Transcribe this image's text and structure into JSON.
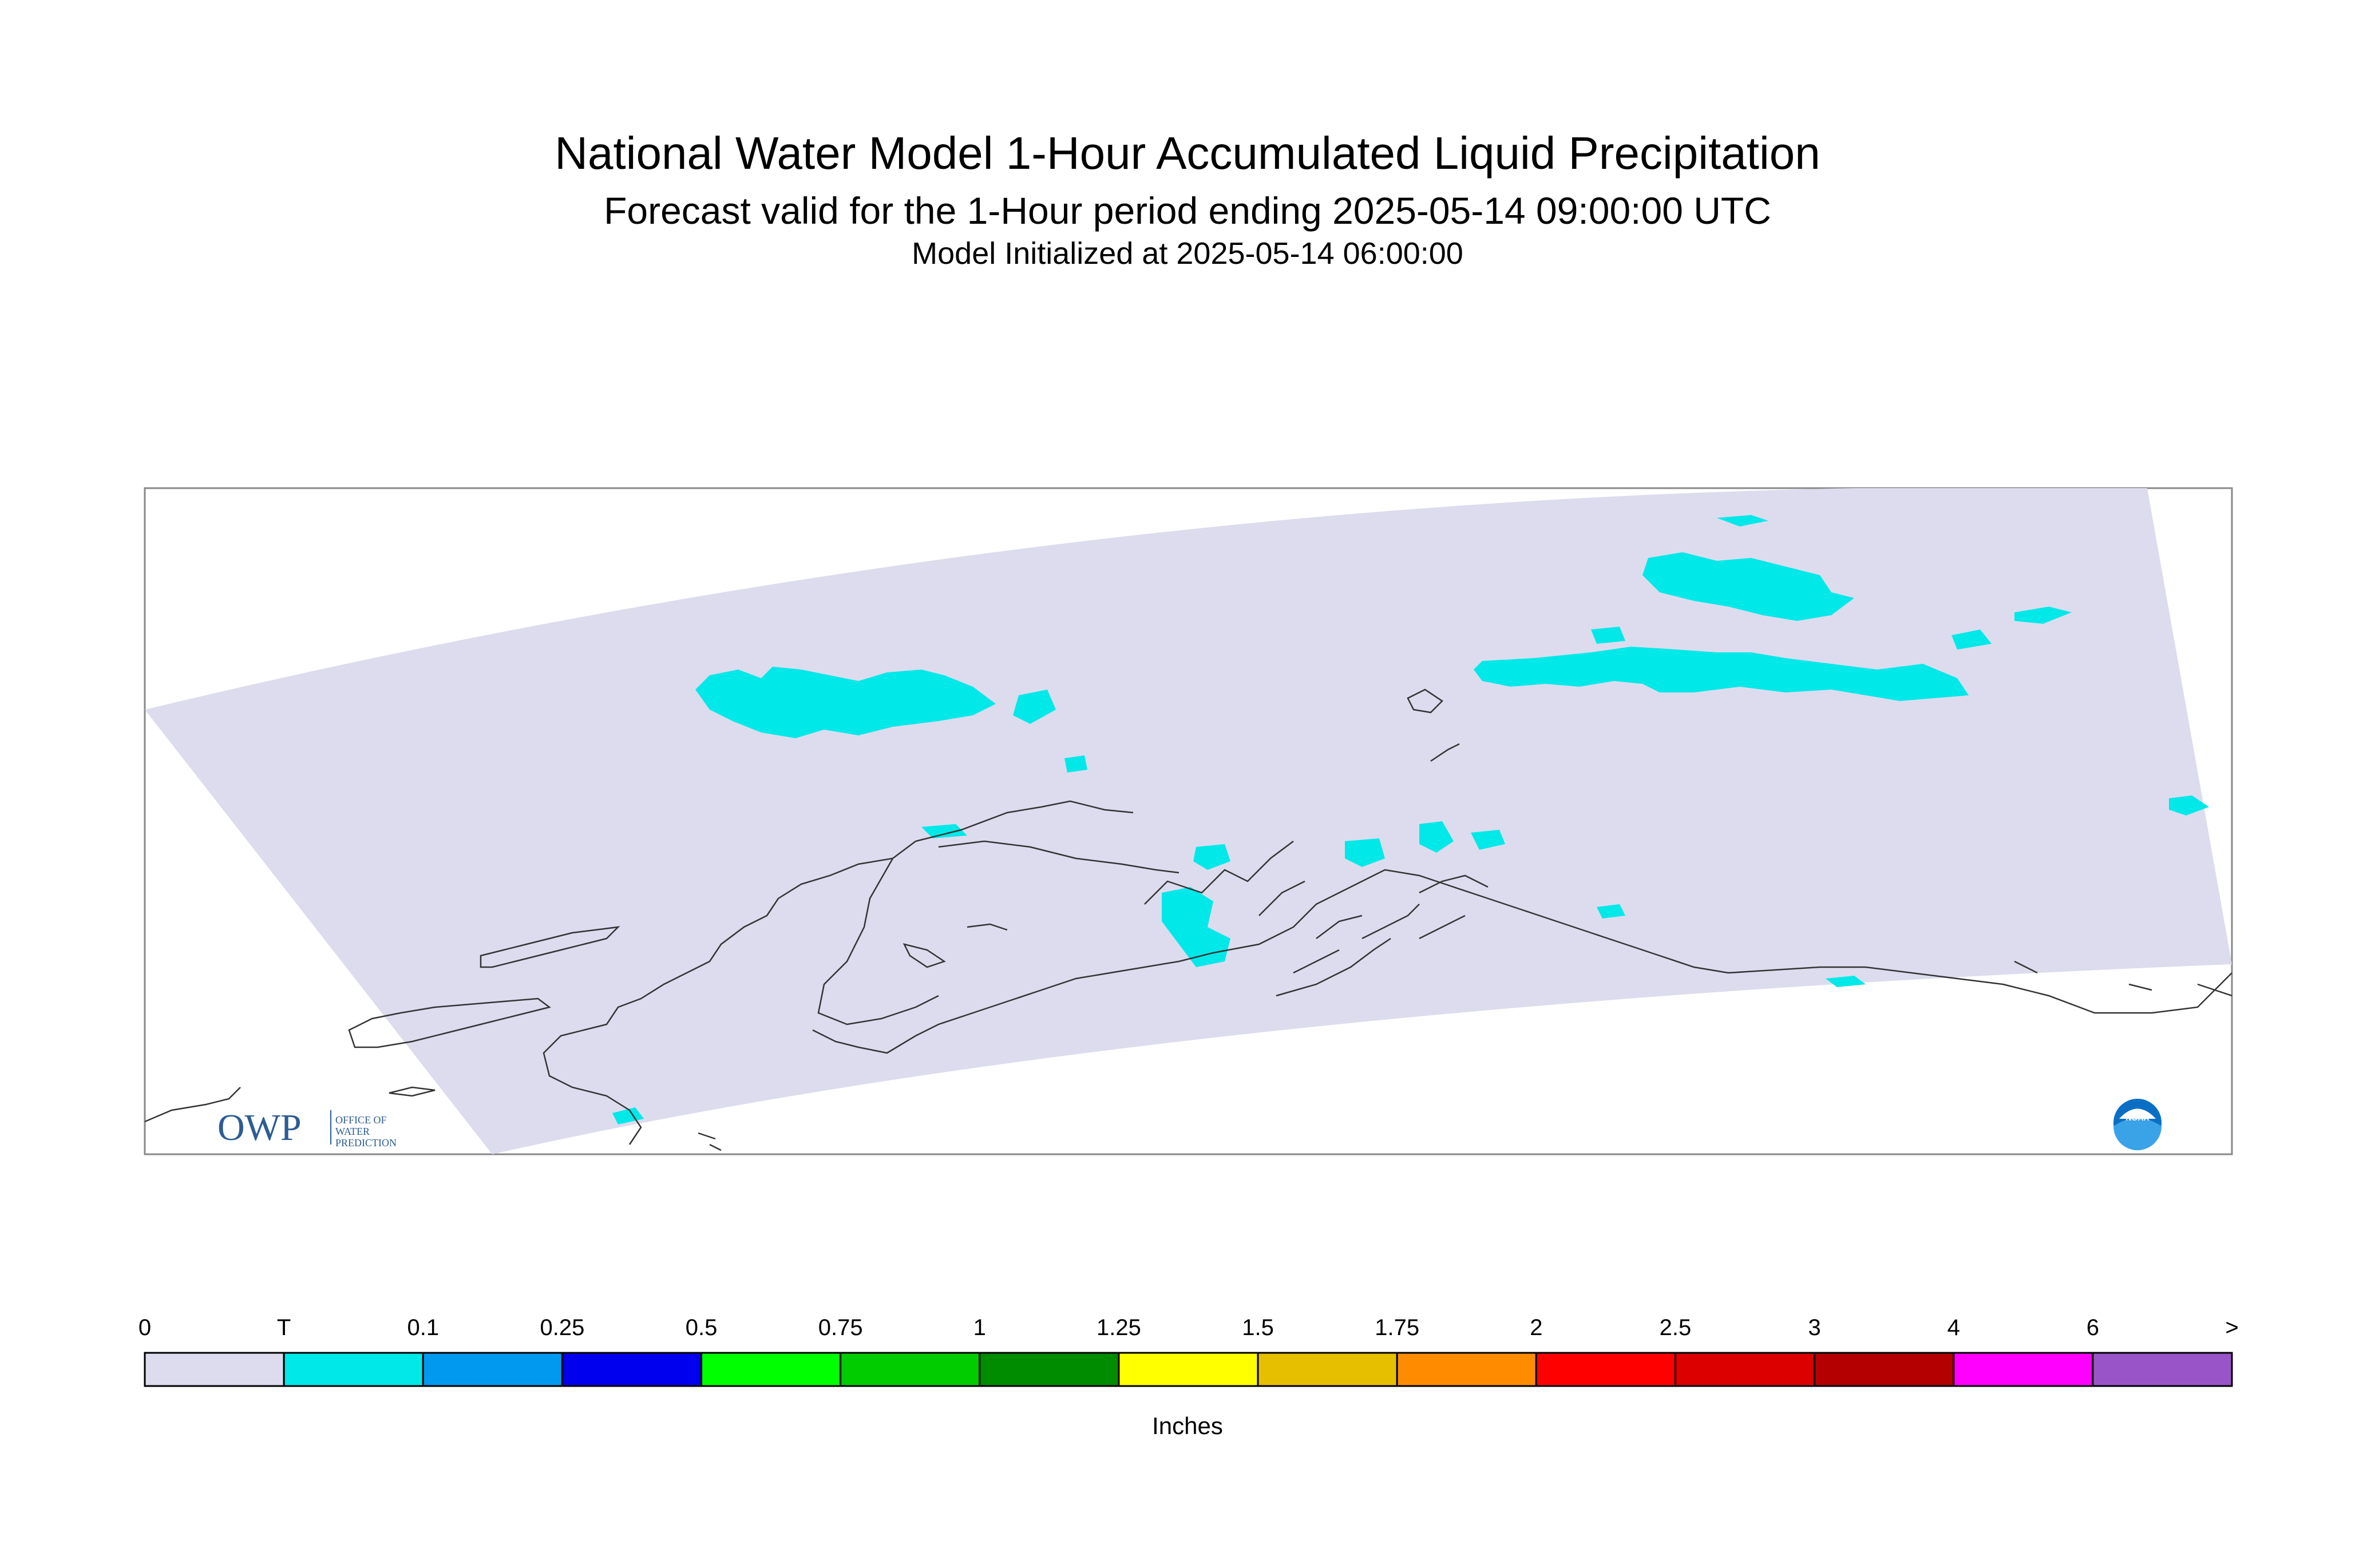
{
  "titles": {
    "main": "National Water Model 1-Hour Accumulated Liquid Precipitation",
    "forecast": "Forecast valid for the 1-Hour period ending 2025-05-14 09:00:00 UTC",
    "init": "Model Initialized at 2025-05-14 06:00:00"
  },
  "map": {
    "domain_fill": "#dcdcee",
    "coastline_color": "#333333",
    "region": "Alaska",
    "precip_color_trace": "#00e8e8"
  },
  "logos": {
    "owp_text": "OWP",
    "owp_sub": [
      "OFFICE OF",
      "WATER",
      "PREDICTION"
    ],
    "noaa_text": "NOAA"
  },
  "colorbar": {
    "units": "Inches",
    "tick_labels": [
      "0",
      "T",
      "0.1",
      "0.25",
      "0.5",
      "0.75",
      "1",
      "1.25",
      "1.5",
      "1.75",
      "2",
      "2.5",
      "3",
      "4",
      "6",
      ">"
    ],
    "colors": [
      "#dcdcee",
      "#00e8e8",
      "#0099f0",
      "#0000ee",
      "#00ff00",
      "#00cc00",
      "#008c00",
      "#ffff00",
      "#e6c000",
      "#ff8c00",
      "#ff0000",
      "#dc0000",
      "#b40000",
      "#ff00ff",
      "#9955c8"
    ]
  }
}
